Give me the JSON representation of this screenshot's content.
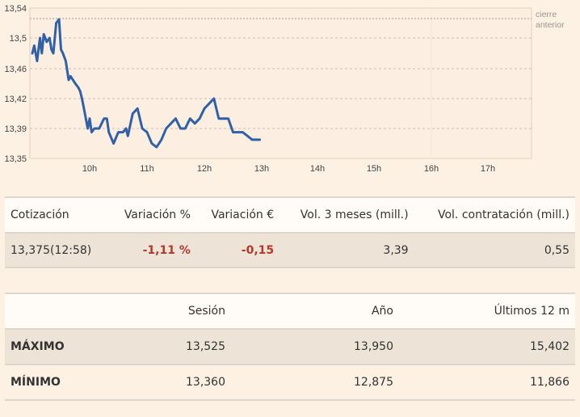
{
  "chart_data": {
    "type": "line",
    "title": "",
    "xlabel": "",
    "ylabel": "",
    "ylim": [
      13.35,
      13.54
    ],
    "xlim": [
      "9h",
      "17h30"
    ],
    "y_ticks": [
      "13,54",
      "13,5",
      "13,46",
      "13,42",
      "13,39",
      "13,35"
    ],
    "x_ticks": [
      "10h",
      "11h",
      "12h",
      "13h",
      "14h",
      "15h",
      "16h",
      "17h"
    ],
    "grid": "horizontal dashed",
    "reference_line": {
      "label_line1": "cierre",
      "label_line2": "anterior",
      "value": 13.526
    },
    "line_color": "#3060a8",
    "series": [
      {
        "name": "Cotización",
        "x": [
          "9:00",
          "9:02",
          "9:05",
          "9:08",
          "9:10",
          "9:12",
          "9:15",
          "9:18",
          "9:20",
          "9:22",
          "9:25",
          "9:28",
          "9:30",
          "9:32",
          "9:35",
          "9:38",
          "9:40",
          "9:45",
          "9:48",
          "9:50",
          "9:52",
          "9:55",
          "9:58",
          "10:00",
          "10:02",
          "10:05",
          "10:08",
          "10:10",
          "10:15",
          "10:18",
          "10:20",
          "10:25",
          "10:30",
          "10:35",
          "10:38",
          "10:40",
          "10:45",
          "10:50",
          "10:55",
          "11:00",
          "11:05",
          "11:10",
          "11:15",
          "11:20",
          "11:25",
          "11:30",
          "11:35",
          "11:40",
          "11:45",
          "11:50",
          "11:55",
          "12:00",
          "12:05",
          "12:10",
          "12:15",
          "12:20",
          "12:25",
          "12:30",
          "12:35",
          "12:40",
          "12:45",
          "12:50",
          "12:55",
          "12:58"
        ],
        "values": [
          13.48,
          13.49,
          13.47,
          13.5,
          13.48,
          13.505,
          13.495,
          13.5,
          13.485,
          13.48,
          13.52,
          13.525,
          13.485,
          13.48,
          13.47,
          13.445,
          13.45,
          13.44,
          13.435,
          13.43,
          13.42,
          13.405,
          13.39,
          13.4,
          13.385,
          13.39,
          13.39,
          13.39,
          13.4,
          13.4,
          13.385,
          13.37,
          13.385,
          13.385,
          13.39,
          13.38,
          13.405,
          13.41,
          13.39,
          13.385,
          13.37,
          13.365,
          13.375,
          13.39,
          13.395,
          13.4,
          13.39,
          13.39,
          13.4,
          13.395,
          13.4,
          13.41,
          13.415,
          13.42,
          13.4,
          13.4,
          13.4,
          13.385,
          13.385,
          13.385,
          13.38,
          13.375,
          13.375,
          13.375
        ]
      }
    ]
  },
  "quote_table": {
    "headers": [
      "Cotización",
      "Variación %",
      "Variación €",
      "Vol. 3 meses (mill.)",
      "Vol. contratación (mill.)"
    ],
    "row": {
      "cotizacion": "13,375(12:58)",
      "variacion_pct": "-1,11 %",
      "variacion_eur": "-0,15",
      "vol_3_meses": "3,39",
      "vol_contratacion": "0,55"
    }
  },
  "range_table": {
    "headers": [
      "",
      "Sesión",
      "Año",
      "Últimos 12 m"
    ],
    "rows": [
      {
        "label": "MÁXIMO",
        "sesion": "13,525",
        "ano": "13,950",
        "ultimos_12m": "15,402"
      },
      {
        "label": "MÍNIMO",
        "sesion": "13,360",
        "ano": "12,875",
        "ultimos_12m": "11,866"
      }
    ]
  },
  "colors": {
    "background": "#fdf1e4",
    "line": "#3060a8",
    "negative": "#b23a2c",
    "header_row": "#fffbf6",
    "shaded_row": "#ede3d6"
  }
}
